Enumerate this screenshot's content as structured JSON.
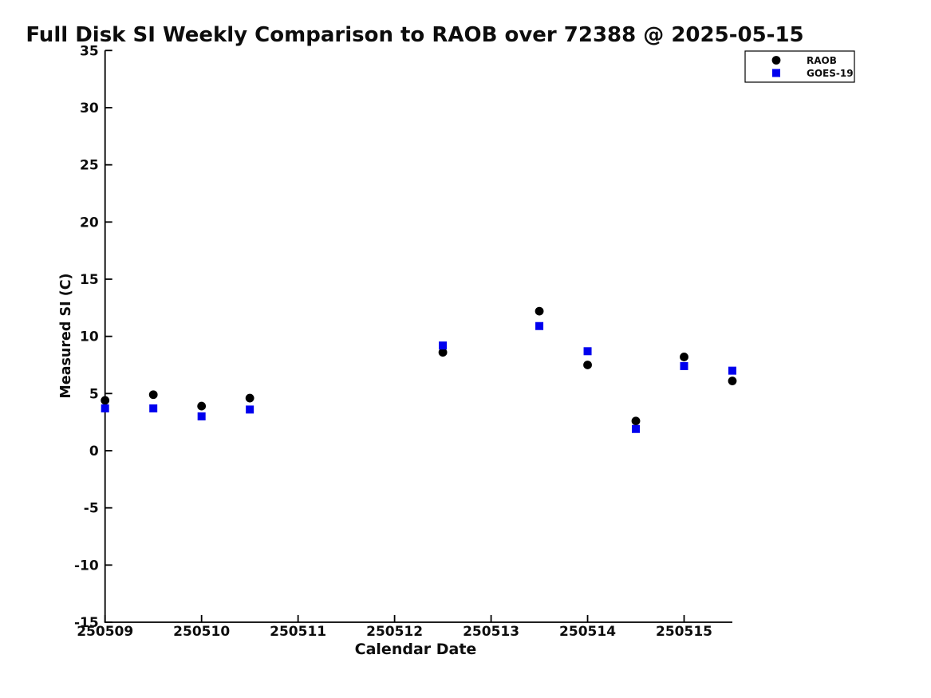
{
  "chart_data": {
    "type": "scatter",
    "title": "Full Disk SI Weekly Comparison to RAOB over 72388 @ 2025-05-15",
    "xlabel": "Calendar Date",
    "ylabel": "Measured SI (C)",
    "xlim": [
      250509,
      250515.5
    ],
    "ylim": [
      -15,
      35
    ],
    "x_ticks": [
      250509,
      250510,
      250511,
      250512,
      250513,
      250514,
      250515
    ],
    "x_tick_labels": [
      "250509",
      "250510",
      "250511",
      "250512",
      "250513",
      "250514",
      "250515"
    ],
    "y_ticks": [
      35,
      30,
      25,
      20,
      15,
      10,
      5,
      0,
      -5,
      -10,
      -15
    ],
    "y_tick_labels": [
      "35",
      "30",
      "25",
      "20",
      "15",
      "10",
      "5",
      "0",
      "-5",
      "-10",
      "-15"
    ],
    "grid": false,
    "legend_position": "top-right",
    "series": [
      {
        "name": "RAOB",
        "marker": "circle",
        "color": "#000000",
        "x": [
          250509.0,
          250509.5,
          250510.0,
          250510.5,
          250512.5,
          250513.5,
          250514.0,
          250514.5,
          250515.0,
          250515.5
        ],
        "y": [
          4.4,
          4.9,
          3.9,
          4.6,
          8.6,
          12.2,
          7.5,
          2.6,
          8.2,
          6.1
        ]
      },
      {
        "name": "GOES-19",
        "marker": "square",
        "color": "#0000ee",
        "x": [
          250509.0,
          250509.5,
          250510.0,
          250510.5,
          250512.5,
          250513.5,
          250514.0,
          250514.5,
          250515.0,
          250515.5
        ],
        "y": [
          3.7,
          3.7,
          3.0,
          3.6,
          9.2,
          10.9,
          8.7,
          1.9,
          7.4,
          7.0
        ]
      }
    ]
  }
}
